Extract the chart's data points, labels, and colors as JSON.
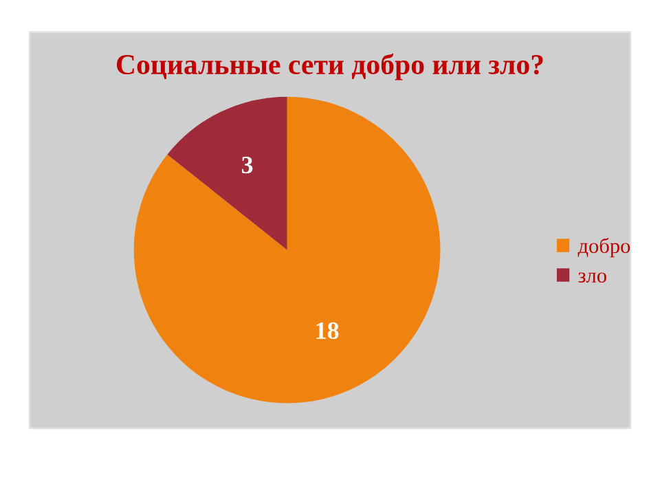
{
  "chart_data": {
    "type": "pie",
    "title": "Социальные сети добро или зло?",
    "categories": [
      "добро",
      "зло"
    ],
    "values": [
      18,
      3
    ],
    "colors": [
      "#f0820f",
      "#9e2a3a"
    ],
    "data_labels": true,
    "legend": "right"
  }
}
